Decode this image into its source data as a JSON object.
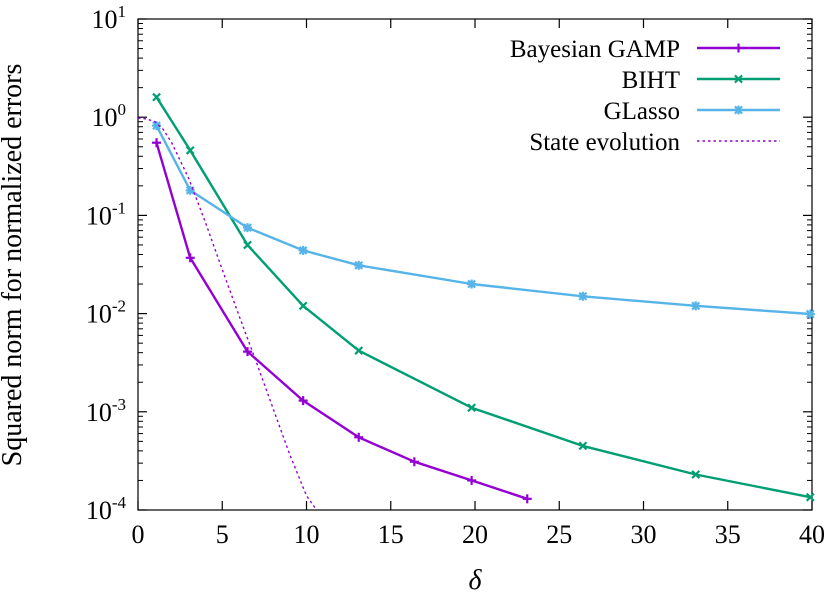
{
  "chart_data": {
    "type": "line",
    "xlabel": "δ",
    "ylabel": "Squared norm for normalized errors",
    "xlim": [
      0,
      40
    ],
    "ylim": [
      0.0001,
      10
    ],
    "yscale": "log",
    "grid": false,
    "legend_position": "top-right",
    "xticks": [
      0,
      5,
      10,
      15,
      20,
      25,
      30,
      35,
      40
    ],
    "xtick_labels": [
      "0",
      "5",
      "10",
      "15",
      "20",
      "25",
      "30",
      "35",
      "40"
    ],
    "yticks": [
      {
        "value": 0.0001,
        "base": "10",
        "exp": "-4"
      },
      {
        "value": 0.001,
        "base": "10",
        "exp": "-3"
      },
      {
        "value": 0.01,
        "base": "10",
        "exp": "-2"
      },
      {
        "value": 0.1,
        "base": "10",
        "exp": "-1"
      },
      {
        "value": 1,
        "base": "10",
        "exp": "0"
      },
      {
        "value": 10,
        "base": "10",
        "exp": "1"
      }
    ],
    "series": [
      {
        "name": "Bayesian GAMP",
        "color": "#9400d3",
        "marker": "plus",
        "line": "solid",
        "x": [
          1.1,
          3.1,
          6.5,
          9.8,
          13.1,
          16.4,
          19.8,
          23.1
        ],
        "y": [
          0.55,
          0.037,
          0.0041,
          0.0013,
          0.00055,
          0.00031,
          0.0002,
          0.00013
        ]
      },
      {
        "name": "BIHT",
        "color": "#009e73",
        "marker": "cross",
        "line": "solid",
        "x": [
          1.1,
          3.1,
          6.5,
          9.8,
          13.1,
          19.8,
          26.4,
          33.1,
          39.9
        ],
        "y": [
          1.6,
          0.46,
          0.05,
          0.012,
          0.0042,
          0.0011,
          0.00045,
          0.00023,
          0.000135
        ]
      },
      {
        "name": "GLasso",
        "color": "#56b4e9",
        "marker": "star",
        "line": "solid",
        "x": [
          1.1,
          3.1,
          6.5,
          9.8,
          13.1,
          19.8,
          26.4,
          33.1,
          39.9
        ],
        "y": [
          0.82,
          0.18,
          0.075,
          0.044,
          0.031,
          0.02,
          0.015,
          0.012,
          0.0099
        ]
      },
      {
        "name": "State evolution",
        "color": "#9400d3",
        "marker": "none",
        "line": "dotted",
        "x": [
          0,
          0.5,
          1,
          1.5,
          2,
          3,
          4,
          5,
          6,
          7,
          8,
          9,
          10,
          10.6
        ],
        "y": [
          0.98,
          0.96,
          0.9,
          0.75,
          0.55,
          0.24,
          0.085,
          0.028,
          0.0095,
          0.0033,
          0.0011,
          0.00037,
          0.00014,
          0.0001
        ]
      }
    ]
  }
}
